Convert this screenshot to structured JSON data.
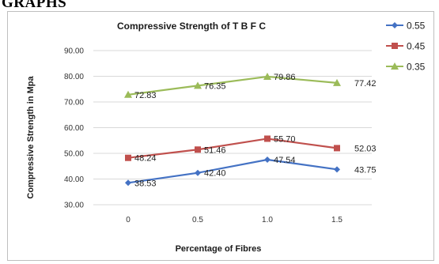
{
  "page": {
    "heading": "GRAPHS"
  },
  "chart_data": {
    "type": "line",
    "title": "Compressive Strength of  T B F C",
    "xlabel": "Percentage of Fibres",
    "ylabel": "Compressive Strength in Mpa",
    "categories": [
      "0",
      "0.5",
      "1.0",
      "1.5"
    ],
    "ylim": [
      30,
      90
    ],
    "yticks": [
      "30.00",
      "40.00",
      "50.00",
      "60.00",
      "70.00",
      "80.00",
      "90.00"
    ],
    "grid": true,
    "legend_position": "top-right",
    "series": [
      {
        "name": "0.55",
        "values": [
          38.53,
          42.4,
          47.54,
          43.75
        ],
        "labels": [
          "38.53",
          "42.40",
          "47.54",
          "43.75"
        ],
        "color": "#4472c4",
        "marker": "diamond"
      },
      {
        "name": "0.45",
        "values": [
          48.24,
          51.46,
          55.7,
          52.03
        ],
        "labels": [
          "48.24",
          "51.46",
          "55.70",
          "52.03"
        ],
        "color": "#c0504d",
        "marker": "square"
      },
      {
        "name": "0.35",
        "values": [
          72.83,
          76.35,
          79.86,
          77.42
        ],
        "labels": [
          "72.83",
          "76.35",
          "79.86",
          "77.42"
        ],
        "color": "#9bbb59",
        "marker": "triangle"
      }
    ]
  }
}
